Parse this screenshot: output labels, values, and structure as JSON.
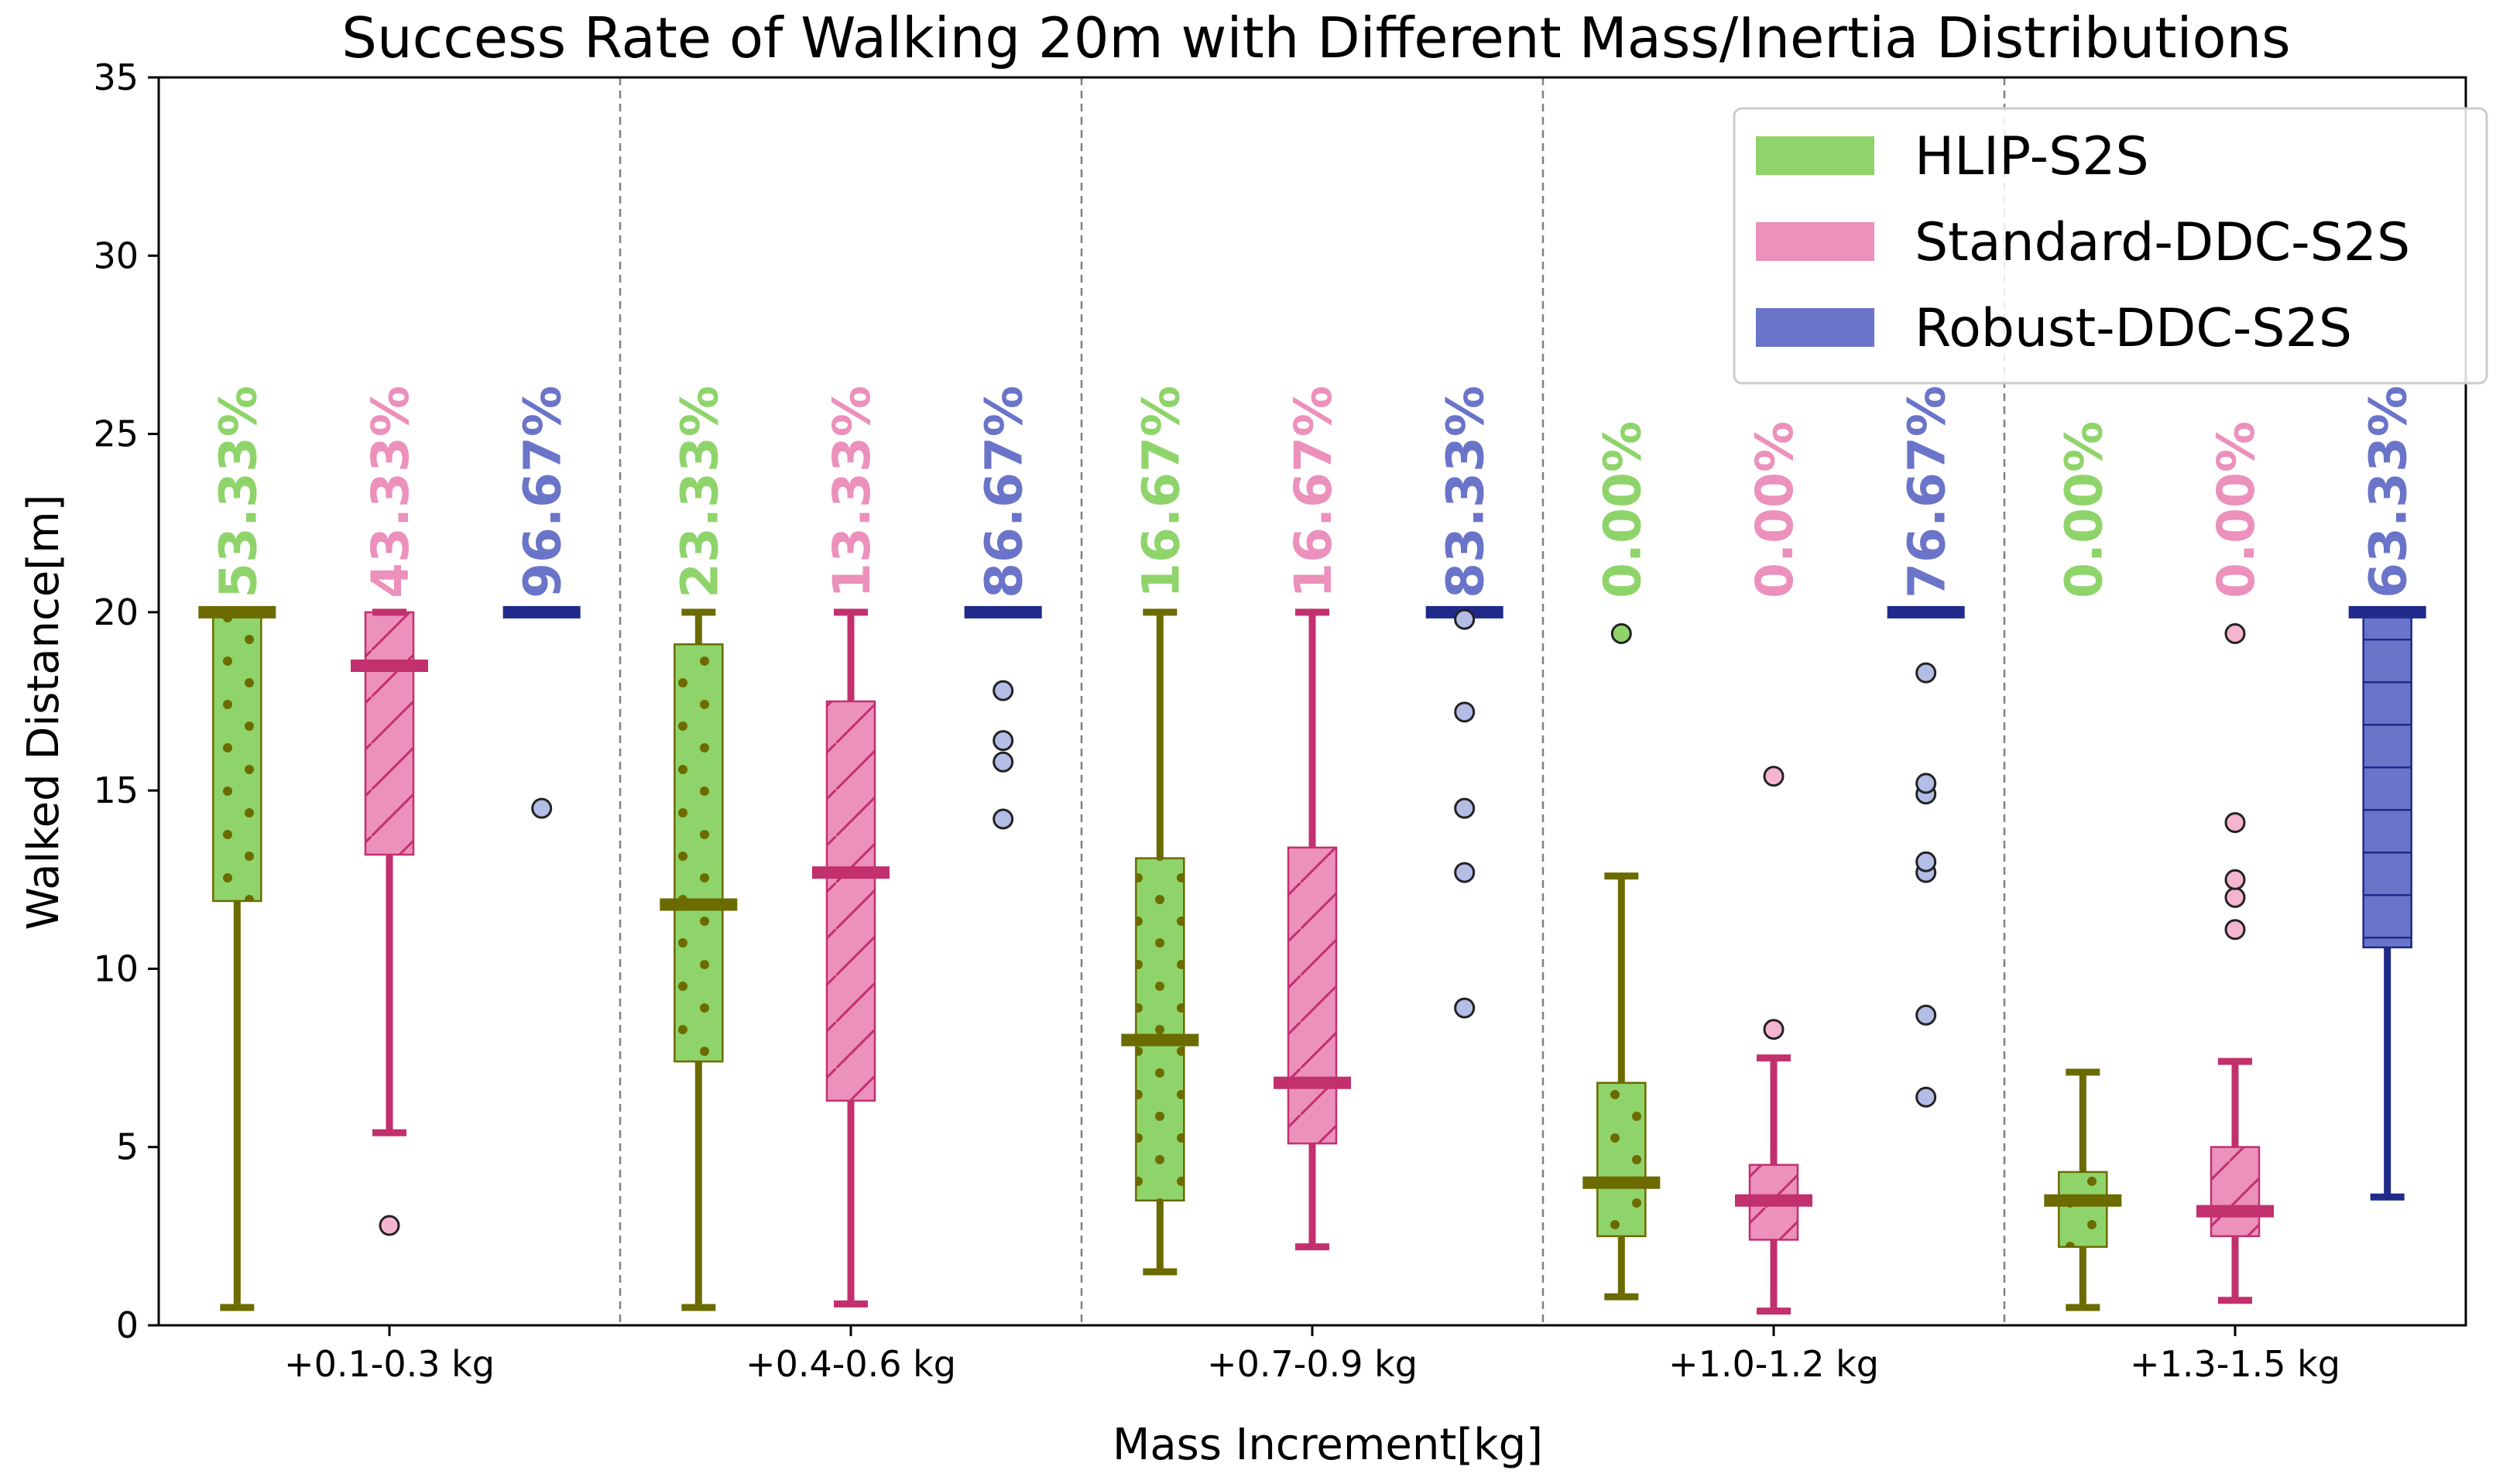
{
  "chart_data": {
    "type": "box",
    "title": "Success Rate of Walking 20m with Different Mass/Inertia Distributions",
    "xlabel": "Mass Increment[kg]",
    "ylabel": "Walked Distance[m]",
    "ylim": [
      0,
      35
    ],
    "yticks": [
      "0",
      "5",
      "10",
      "15",
      "20",
      "25",
      "30",
      "35"
    ],
    "categories": [
      "+0.1-0.3 kg",
      "+0.4-0.6 kg",
      "+0.7-0.9 kg",
      "+1.0-1.2 kg",
      "+1.3-1.5 kg"
    ],
    "legend_position": "top-right",
    "series": [
      {
        "name": "HLIP-S2S",
        "face_color": "#8fd46b",
        "edge_color": "#6b6b00",
        "label_color": "#8fd46b",
        "hatch": "dots",
        "groups": [
          {
            "q1": 11.9,
            "median": 20.0,
            "q3": 20.0,
            "whisker_low": 0.5,
            "whisker_high": 20.0,
            "outliers": [],
            "success_rate": "53.33%"
          },
          {
            "q1": 7.4,
            "median": 11.8,
            "q3": 19.1,
            "whisker_low": 0.5,
            "whisker_high": 20.0,
            "outliers": [],
            "success_rate": "23.33%"
          },
          {
            "q1": 3.5,
            "median": 8.0,
            "q3": 13.1,
            "whisker_low": 1.5,
            "whisker_high": 20.0,
            "outliers": [],
            "success_rate": "16.67%"
          },
          {
            "q1": 2.5,
            "median": 4.0,
            "q3": 6.8,
            "whisker_low": 0.8,
            "whisker_high": 12.6,
            "outliers": [
              19.4
            ],
            "success_rate": "0.00%"
          },
          {
            "q1": 2.2,
            "median": 3.5,
            "q3": 4.3,
            "whisker_low": 0.5,
            "whisker_high": 7.1,
            "outliers": [],
            "success_rate": "0.00%"
          }
        ]
      },
      {
        "name": "Standard-DDC-S2S",
        "face_color": "#ec90bc",
        "edge_color": "#c2306e",
        "label_color": "#ec90bc",
        "hatch": "diagonal",
        "outlier_color": "#f5b5cf",
        "groups": [
          {
            "q1": 13.2,
            "median": 18.5,
            "q3": 20.0,
            "whisker_low": 5.4,
            "whisker_high": 20.0,
            "outliers": [
              2.8
            ],
            "success_rate": "43.33%"
          },
          {
            "q1": 6.3,
            "median": 12.7,
            "q3": 17.5,
            "whisker_low": 0.6,
            "whisker_high": 20.0,
            "outliers": [],
            "success_rate": "13.33%"
          },
          {
            "q1": 5.1,
            "median": 6.8,
            "q3": 13.4,
            "whisker_low": 2.2,
            "whisker_high": 20.0,
            "outliers": [],
            "success_rate": "16.67%"
          },
          {
            "q1": 2.4,
            "median": 3.5,
            "q3": 4.5,
            "whisker_low": 0.4,
            "whisker_high": 7.5,
            "outliers": [
              8.3,
              15.4
            ],
            "success_rate": "0.00%"
          },
          {
            "q1": 2.5,
            "median": 3.2,
            "q3": 5.0,
            "whisker_low": 0.7,
            "whisker_high": 7.4,
            "outliers": [
              11.1,
              12.0,
              12.5,
              14.1,
              19.4
            ],
            "success_rate": "0.00%"
          }
        ]
      },
      {
        "name": "Robust-DDC-S2S",
        "face_color": "#6a74c8",
        "edge_color": "#1f2a8a",
        "label_color": "#6a74c8",
        "hatch": "horizontal",
        "outlier_color": "#b3bde6",
        "groups": [
          {
            "q1": 20.0,
            "median": 20.0,
            "q3": 20.0,
            "whisker_low": 20.0,
            "whisker_high": 20.0,
            "outliers": [
              14.5
            ],
            "success_rate": "96.67%"
          },
          {
            "q1": 20.0,
            "median": 20.0,
            "q3": 20.0,
            "whisker_low": 20.0,
            "whisker_high": 20.0,
            "outliers": [
              14.2,
              15.8,
              16.4,
              17.8
            ],
            "success_rate": "86.67%"
          },
          {
            "q1": 20.0,
            "median": 20.0,
            "q3": 20.0,
            "whisker_low": 20.0,
            "whisker_high": 20.0,
            "outliers": [
              8.9,
              12.7,
              14.5,
              17.2,
              19.8
            ],
            "success_rate": "83.33%"
          },
          {
            "q1": 20.0,
            "median": 20.0,
            "q3": 20.0,
            "whisker_low": 20.0,
            "whisker_high": 20.0,
            "outliers": [
              6.4,
              8.7,
              12.7,
              13.0,
              14.9,
              15.2,
              18.3
            ],
            "success_rate": "76.67%"
          },
          {
            "q1": 10.6,
            "median": 20.0,
            "q3": 20.0,
            "whisker_low": 3.6,
            "whisker_high": 20.0,
            "outliers": [],
            "success_rate": "63.33%"
          }
        ]
      }
    ]
  }
}
